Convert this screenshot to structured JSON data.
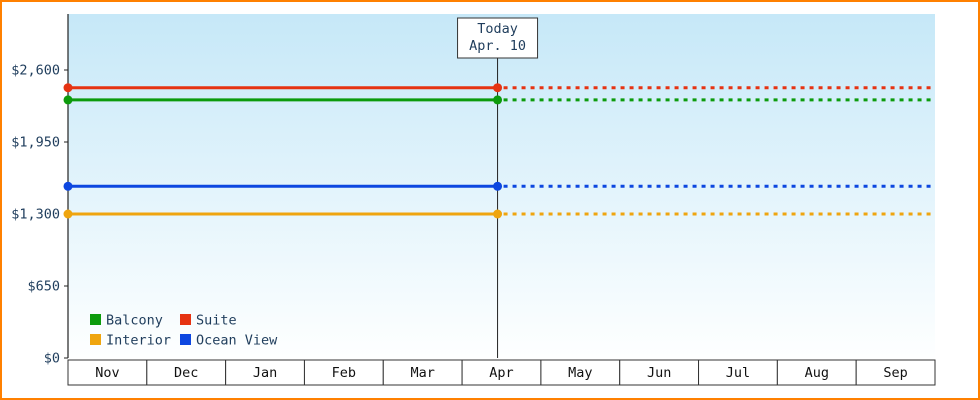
{
  "chart_data": {
    "type": "line",
    "x_categories": [
      "Nov",
      "Dec",
      "Jan",
      "Feb",
      "Mar",
      "Apr",
      "May",
      "Jun",
      "Jul",
      "Aug",
      "Sep"
    ],
    "y_ticks": [
      {
        "label": "$2,600",
        "value": 2600
      },
      {
        "label": "$1,950",
        "value": 1950
      },
      {
        "label": "$1,300",
        "value": 1300
      },
      {
        "label": "$650",
        "value": 650
      },
      {
        "label": "$0",
        "value": 0
      }
    ],
    "ylim": [
      0,
      3100
    ],
    "grid": "off",
    "today": {
      "title": "Today",
      "date": "Apr. 10",
      "month_index": 5,
      "month_fraction": 0.45
    },
    "series": [
      {
        "name": "Suite",
        "color": "#e63312",
        "value": 2440,
        "past_style": "solid",
        "future_style": "dotted"
      },
      {
        "name": "Balcony",
        "color": "#0c9b0c",
        "value": 2330,
        "past_style": "solid",
        "future_style": "dotted"
      },
      {
        "name": "Ocean View",
        "color": "#0d47e0",
        "value": 1550,
        "past_style": "solid",
        "future_style": "dotted"
      },
      {
        "name": "Interior",
        "color": "#efa50f",
        "value": 1300,
        "past_style": "solid",
        "future_style": "dotted"
      }
    ],
    "legend": {
      "position": "bottom-left",
      "rows": [
        [
          "Balcony",
          "Suite"
        ],
        [
          "Interior",
          "Ocean View"
        ]
      ]
    }
  },
  "style": {
    "frame_border_color": "#ff8000",
    "plot_bg_top": "#c6e8f8",
    "plot_bg_bottom": "#feffff",
    "axis_color": "#222222",
    "text_color": "#1f3d5c",
    "month_text_color": "#111111",
    "box_fill": "#ffffff",
    "box_border": "#333333"
  }
}
